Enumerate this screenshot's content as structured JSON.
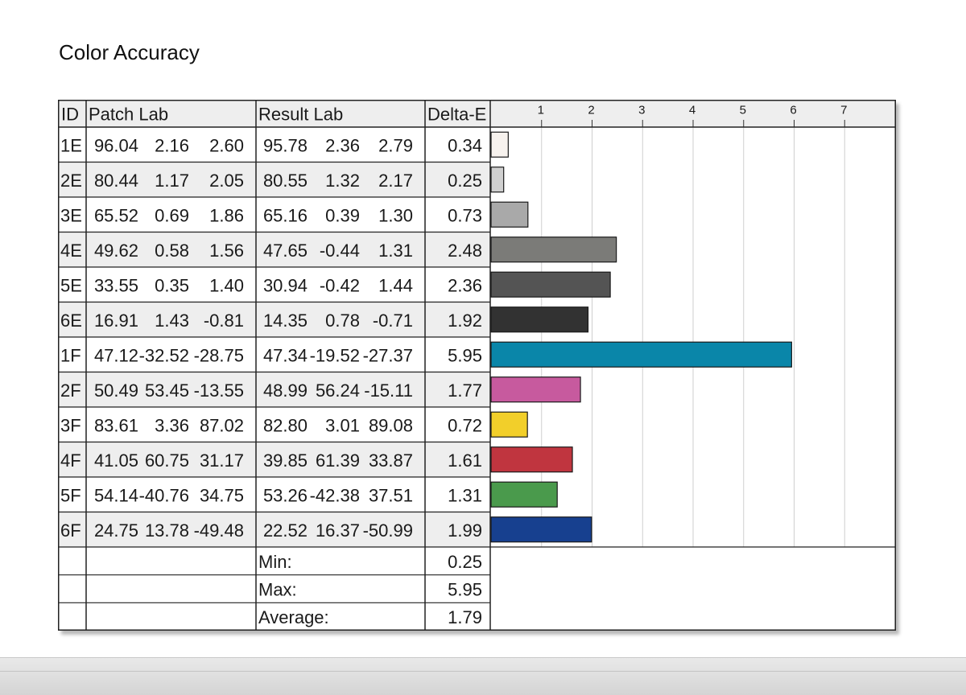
{
  "page": {
    "title": "Color Accuracy"
  },
  "table": {
    "headers": {
      "id": "ID",
      "patch": "Patch Lab",
      "result": "Result Lab",
      "delta": "Delta-E"
    },
    "rows": [
      {
        "id": "1E",
        "patch": [
          "96.04",
          "2.16",
          "2.60"
        ],
        "result": [
          "95.78",
          "2.36",
          "2.79"
        ],
        "delta": "0.34"
      },
      {
        "id": "2E",
        "patch": [
          "80.44",
          "1.17",
          "2.05"
        ],
        "result": [
          "80.55",
          "1.32",
          "2.17"
        ],
        "delta": "0.25"
      },
      {
        "id": "3E",
        "patch": [
          "65.52",
          "0.69",
          "1.86"
        ],
        "result": [
          "65.16",
          "0.39",
          "1.30"
        ],
        "delta": "0.73"
      },
      {
        "id": "4E",
        "patch": [
          "49.62",
          "0.58",
          "1.56"
        ],
        "result": [
          "47.65",
          "-0.44",
          "1.31"
        ],
        "delta": "2.48"
      },
      {
        "id": "5E",
        "patch": [
          "33.55",
          "0.35",
          "1.40"
        ],
        "result": [
          "30.94",
          "-0.42",
          "1.44"
        ],
        "delta": "2.36"
      },
      {
        "id": "6E",
        "patch": [
          "16.91",
          "1.43",
          "-0.81"
        ],
        "result": [
          "14.35",
          "0.78",
          "-0.71"
        ],
        "delta": "1.92"
      },
      {
        "id": "1F",
        "patch": [
          "47.12",
          "-32.52",
          "-28.75"
        ],
        "result": [
          "47.34",
          "-19.52",
          "-27.37"
        ],
        "delta": "5.95"
      },
      {
        "id": "2F",
        "patch": [
          "50.49",
          "53.45",
          "-13.55"
        ],
        "result": [
          "48.99",
          "56.24",
          "-15.11"
        ],
        "delta": "1.77"
      },
      {
        "id": "3F",
        "patch": [
          "83.61",
          "3.36",
          "87.02"
        ],
        "result": [
          "82.80",
          "3.01",
          "89.08"
        ],
        "delta": "0.72"
      },
      {
        "id": "4F",
        "patch": [
          "41.05",
          "60.75",
          "31.17"
        ],
        "result": [
          "39.85",
          "61.39",
          "33.87"
        ],
        "delta": "1.61"
      },
      {
        "id": "5F",
        "patch": [
          "54.14",
          "-40.76",
          "34.75"
        ],
        "result": [
          "53.26",
          "-42.38",
          "37.51"
        ],
        "delta": "1.31"
      },
      {
        "id": "6F",
        "patch": [
          "24.75",
          "13.78",
          "-49.48"
        ],
        "result": [
          "22.52",
          "16.37",
          "-50.99"
        ],
        "delta": "1.99"
      }
    ],
    "summary": [
      {
        "label": "Min:",
        "value": "0.25"
      },
      {
        "label": "Max:",
        "value": "5.95"
      },
      {
        "label": "Average:",
        "value": "1.79"
      }
    ]
  },
  "chart_data": {
    "type": "bar",
    "orientation": "horizontal",
    "categories": [
      "1E",
      "2E",
      "3E",
      "4E",
      "5E",
      "6E",
      "1F",
      "2F",
      "3F",
      "4F",
      "5F",
      "6F"
    ],
    "values": [
      0.34,
      0.25,
      0.73,
      2.48,
      2.36,
      1.92,
      5.95,
      1.77,
      0.72,
      1.61,
      1.31,
      1.99
    ],
    "colors": [
      "#f7f2ee",
      "#d0d0d0",
      "#a9a9a9",
      "#7b7b78",
      "#545454",
      "#323232",
      "#0a86a9",
      "#c75a9e",
      "#f2cf2a",
      "#c0353f",
      "#4a9a4c",
      "#17408f"
    ],
    "xticks": [
      1,
      2,
      3,
      4,
      5,
      6,
      7
    ],
    "xlim": [
      0,
      8
    ],
    "grid": true,
    "title": "",
    "xlabel": "",
    "ylabel": ""
  }
}
